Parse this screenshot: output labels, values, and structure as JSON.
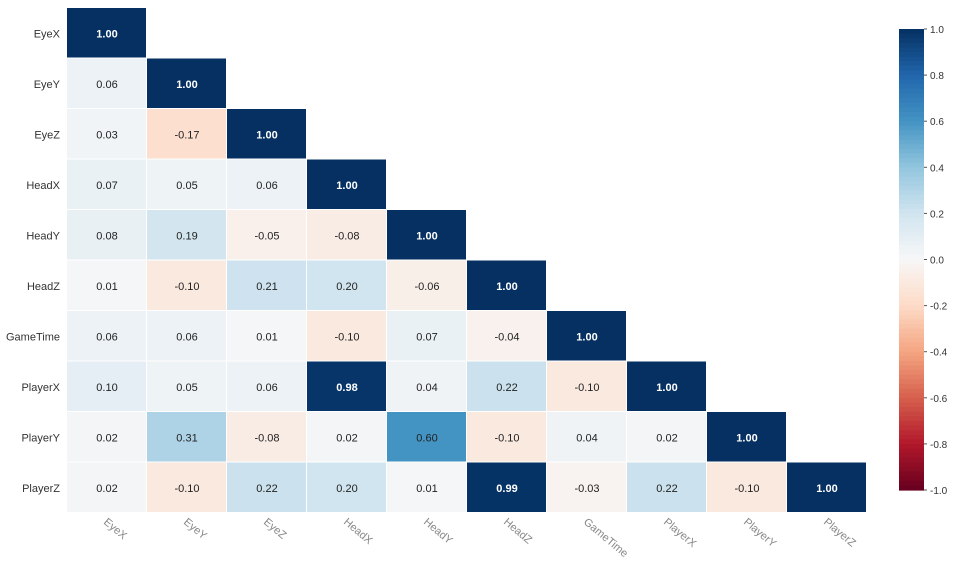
{
  "chart_data": {
    "type": "heatmap",
    "variables": [
      "EyeX",
      "EyeY",
      "EyeZ",
      "HeadX",
      "HeadY",
      "HeadZ",
      "GameTime",
      "PlayerX",
      "PlayerY",
      "PlayerZ"
    ],
    "matrix": [
      [
        1.0
      ],
      [
        0.06,
        1.0
      ],
      [
        0.03,
        -0.17,
        1.0
      ],
      [
        0.07,
        0.05,
        0.06,
        1.0
      ],
      [
        0.08,
        0.19,
        -0.05,
        -0.08,
        1.0
      ],
      [
        0.01,
        -0.1,
        0.21,
        0.2,
        -0.06,
        1.0
      ],
      [
        0.06,
        0.06,
        0.01,
        -0.1,
        0.07,
        -0.04,
        1.0
      ],
      [
        0.1,
        0.05,
        0.06,
        0.98,
        0.04,
        0.22,
        -0.1,
        1.0
      ],
      [
        0.02,
        0.31,
        -0.08,
        0.02,
        0.6,
        -0.1,
        0.04,
        0.02,
        1.0
      ],
      [
        0.02,
        -0.1,
        0.22,
        0.2,
        0.01,
        0.99,
        -0.03,
        0.22,
        -0.1,
        1.0
      ]
    ],
    "triangle": "lower",
    "value_format": "0.00",
    "colorscale": "RdBu",
    "zlim": [
      -1.0,
      1.0
    ],
    "colorbar_ticks": [
      "1.0",
      "0.8",
      "0.6",
      "0.4",
      "0.2",
      "0.0",
      "-0.2",
      "-0.4",
      "-0.6",
      "-0.8",
      "-1.0"
    ],
    "colors": {
      "low": "#67001f",
      "mid": "#f7f7f7",
      "high": "#053061"
    }
  }
}
